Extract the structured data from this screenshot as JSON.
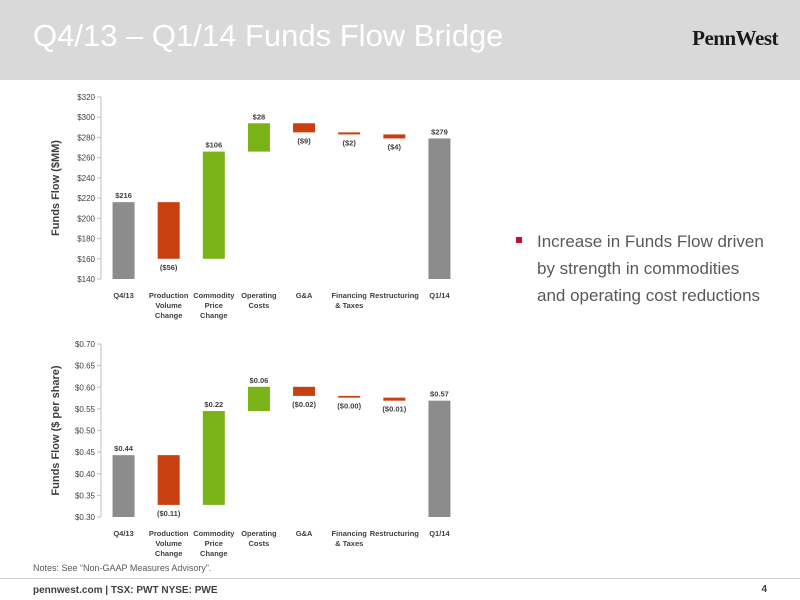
{
  "slide": {
    "title": "Q4/13 – Q1/14 Funds Flow Bridge",
    "logo": "PennWest",
    "bullet": "Increase in Funds Flow driven by strength in commodities and operating cost reductions",
    "notes": "Notes: See “Non-GAAP Measures Advisory”.",
    "footer": "pennwest.com | TSX: PWT  NYSE: PWE",
    "page_number": "4"
  },
  "colors": {
    "total": "#8c8c8c",
    "decrease": "#c8400f",
    "increase": "#7ab317",
    "bullet": "#c8102e"
  },
  "chart_data": [
    {
      "type": "bar",
      "subtype": "waterfall",
      "ylabel": "Funds Flow ($MM)",
      "ylim": [
        140,
        320
      ],
      "yticks": [
        140,
        160,
        180,
        200,
        220,
        240,
        260,
        280,
        300,
        320
      ],
      "ytick_labels": [
        "$140",
        "$160",
        "$180",
        "$200",
        "$220",
        "$240",
        "$260",
        "$280",
        "$300",
        "$320"
      ],
      "categories": [
        [
          "Q4/13"
        ],
        [
          "Production",
          "Volume",
          "Change"
        ],
        [
          "Commodity",
          "Price",
          "Change"
        ],
        [
          "Operating",
          "Costs"
        ],
        [
          "G&A"
        ],
        [
          "Financing",
          "& Taxes"
        ],
        [
          "Restructuring"
        ],
        [
          "Q1/14"
        ]
      ],
      "bars": [
        {
          "kind": "total",
          "start": 140,
          "end": 216,
          "label": "$216",
          "label_pos": "above"
        },
        {
          "kind": "decrease",
          "start": 216,
          "end": 160,
          "label": "($56)",
          "label_pos": "below"
        },
        {
          "kind": "increase",
          "start": 160,
          "end": 266,
          "label": "$106",
          "label_pos": "above"
        },
        {
          "kind": "increase",
          "start": 266,
          "end": 294,
          "label": "$28",
          "label_pos": "above"
        },
        {
          "kind": "decrease",
          "start": 294,
          "end": 285,
          "label": "($9)",
          "label_pos": "below"
        },
        {
          "kind": "decrease",
          "start": 285,
          "end": 283,
          "label": "($2)",
          "label_pos": "below"
        },
        {
          "kind": "decrease",
          "start": 283,
          "end": 279,
          "label": "($4)",
          "label_pos": "below"
        },
        {
          "kind": "total",
          "start": 140,
          "end": 279,
          "label": "$279",
          "label_pos": "above"
        }
      ]
    },
    {
      "type": "bar",
      "subtype": "waterfall",
      "ylabel": "Funds Flow ($ per share)",
      "ylim": [
        0.3,
        0.7
      ],
      "yticks": [
        0.3,
        0.35,
        0.4,
        0.45,
        0.5,
        0.55,
        0.6,
        0.65,
        0.7
      ],
      "ytick_labels": [
        "$0.30",
        "$0.35",
        "$0.40",
        "$0.45",
        "$0.50",
        "$0.55",
        "$0.60",
        "$0.65",
        "$0.70"
      ],
      "categories": [
        [
          "Q4/13"
        ],
        [
          "Production",
          "Volume",
          "Change"
        ],
        [
          "Commodity",
          "Price",
          "Change"
        ],
        [
          "Operating",
          "Costs"
        ],
        [
          "G&A"
        ],
        [
          "Financing",
          "& Taxes"
        ],
        [
          "Restructuring"
        ],
        [
          "Q1/14"
        ]
      ],
      "bars": [
        {
          "kind": "total",
          "start": 0.3,
          "end": 0.443,
          "label": "$0.44",
          "label_pos": "above"
        },
        {
          "kind": "decrease",
          "start": 0.443,
          "end": 0.328,
          "label": "($0.11)",
          "label_pos": "below"
        },
        {
          "kind": "increase",
          "start": 0.328,
          "end": 0.545,
          "label": "$0.22",
          "label_pos": "above"
        },
        {
          "kind": "increase",
          "start": 0.545,
          "end": 0.601,
          "label": "$0.06",
          "label_pos": "above"
        },
        {
          "kind": "decrease",
          "start": 0.601,
          "end": 0.58,
          "label": "($0.02)",
          "label_pos": "below"
        },
        {
          "kind": "decrease",
          "start": 0.58,
          "end": 0.576,
          "label": "($0.00)",
          "label_pos": "below"
        },
        {
          "kind": "decrease",
          "start": 0.576,
          "end": 0.569,
          "label": "($0.01)",
          "label_pos": "below"
        },
        {
          "kind": "total",
          "start": 0.3,
          "end": 0.569,
          "label": "$0.57",
          "label_pos": "above"
        }
      ]
    }
  ]
}
